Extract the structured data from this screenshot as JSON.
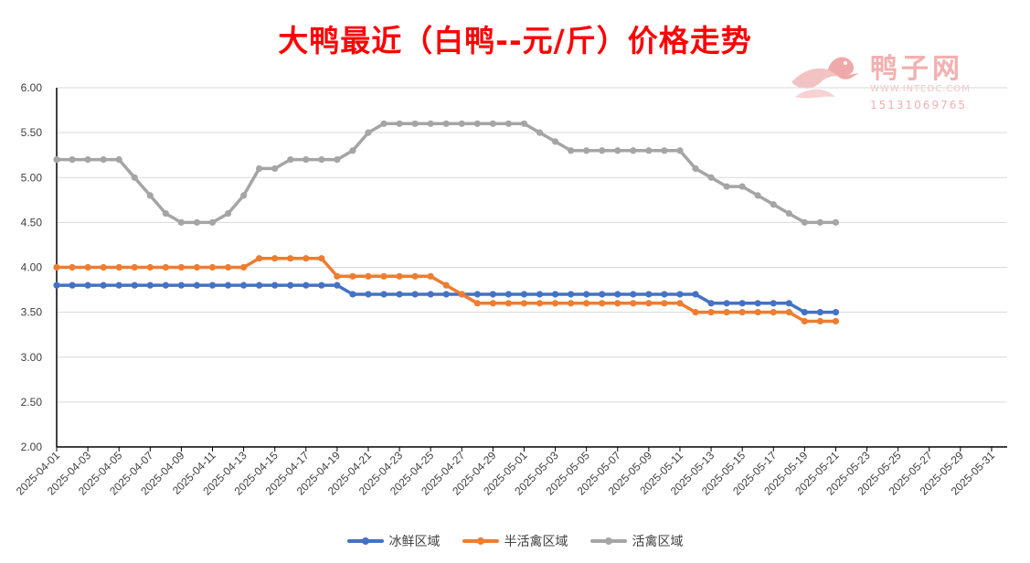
{
  "title": "大鸭最近（白鸭--元/斤）价格走势",
  "watermark": {
    "name": "鸭子网",
    "url": "WWW.INTEDC.COM",
    "phone": "15131069765"
  },
  "chart_data": {
    "type": "line",
    "title": "大鸭最近（白鸭--元/斤）价格走势",
    "xlabel": "",
    "ylabel": "",
    "ylim": [
      2.0,
      6.0
    ],
    "ytick_step": 0.5,
    "grid": "horizontal",
    "legend": "bottom",
    "x_range": [
      "2025-04-01",
      "2025-06-01"
    ],
    "xticks": [
      "2025-04-01",
      "2025-04-03",
      "2025-04-05",
      "2025-04-07",
      "2025-04-09",
      "2025-04-11",
      "2025-04-13",
      "2025-04-15",
      "2025-04-17",
      "2025-04-19",
      "2025-04-21",
      "2025-04-23",
      "2025-04-25",
      "2025-04-27",
      "2025-04-29",
      "2025-05-01",
      "2025-05-03",
      "2025-05-05",
      "2025-05-07",
      "2025-05-09",
      "2025-05-11",
      "2025-05-13",
      "2025-05-15",
      "2025-05-17",
      "2025-05-19",
      "2025-05-21",
      "2025-05-23",
      "2025-05-25",
      "2025-05-27",
      "2025-05-29",
      "2025-05-31"
    ],
    "x": [
      "2025-04-01",
      "2025-04-02",
      "2025-04-03",
      "2025-04-04",
      "2025-04-05",
      "2025-04-06",
      "2025-04-07",
      "2025-04-08",
      "2025-04-09",
      "2025-04-10",
      "2025-04-11",
      "2025-04-12",
      "2025-04-13",
      "2025-04-14",
      "2025-04-15",
      "2025-04-16",
      "2025-04-17",
      "2025-04-18",
      "2025-04-19",
      "2025-04-20",
      "2025-04-21",
      "2025-04-22",
      "2025-04-23",
      "2025-04-24",
      "2025-04-25",
      "2025-04-26",
      "2025-04-27",
      "2025-04-28",
      "2025-04-29",
      "2025-04-30",
      "2025-05-01",
      "2025-05-02",
      "2025-05-03",
      "2025-05-04",
      "2025-05-05",
      "2025-05-06",
      "2025-05-07",
      "2025-05-08",
      "2025-05-09",
      "2025-05-10",
      "2025-05-11",
      "2025-05-12",
      "2025-05-13",
      "2025-05-14",
      "2025-05-15",
      "2025-05-16",
      "2025-05-17",
      "2025-05-18",
      "2025-05-19",
      "2025-05-20",
      "2025-05-21"
    ],
    "series": [
      {
        "name": "冰鲜区域",
        "color": "#4472c4",
        "values": [
          3.8,
          3.8,
          3.8,
          3.8,
          3.8,
          3.8,
          3.8,
          3.8,
          3.8,
          3.8,
          3.8,
          3.8,
          3.8,
          3.8,
          3.8,
          3.8,
          3.8,
          3.8,
          3.8,
          3.7,
          3.7,
          3.7,
          3.7,
          3.7,
          3.7,
          3.7,
          3.7,
          3.7,
          3.7,
          3.7,
          3.7,
          3.7,
          3.7,
          3.7,
          3.7,
          3.7,
          3.7,
          3.7,
          3.7,
          3.7,
          3.7,
          3.7,
          3.6,
          3.6,
          3.6,
          3.6,
          3.6,
          3.6,
          3.5,
          3.5,
          3.5
        ]
      },
      {
        "name": "半活禽区域",
        "color": "#ed7d31",
        "values": [
          4.0,
          4.0,
          4.0,
          4.0,
          4.0,
          4.0,
          4.0,
          4.0,
          4.0,
          4.0,
          4.0,
          4.0,
          4.0,
          4.1,
          4.1,
          4.1,
          4.1,
          4.1,
          3.9,
          3.9,
          3.9,
          3.9,
          3.9,
          3.9,
          3.9,
          3.8,
          3.7,
          3.6,
          3.6,
          3.6,
          3.6,
          3.6,
          3.6,
          3.6,
          3.6,
          3.6,
          3.6,
          3.6,
          3.6,
          3.6,
          3.6,
          3.5,
          3.5,
          3.5,
          3.5,
          3.5,
          3.5,
          3.5,
          3.4,
          3.4,
          3.4
        ]
      },
      {
        "name": "活禽区域",
        "color": "#a5a5a5",
        "values": [
          5.2,
          5.2,
          5.2,
          5.2,
          5.2,
          5.0,
          4.8,
          4.6,
          4.5,
          4.5,
          4.5,
          4.6,
          4.8,
          5.1,
          5.1,
          5.2,
          5.2,
          5.2,
          5.2,
          5.3,
          5.5,
          5.6,
          5.6,
          5.6,
          5.6,
          5.6,
          5.6,
          5.6,
          5.6,
          5.6,
          5.6,
          5.5,
          5.4,
          5.3,
          5.3,
          5.3,
          5.3,
          5.3,
          5.3,
          5.3,
          5.3,
          5.1,
          5.0,
          4.9,
          4.9,
          4.8,
          4.7,
          4.6,
          4.5,
          4.5,
          4.5
        ]
      }
    ]
  }
}
